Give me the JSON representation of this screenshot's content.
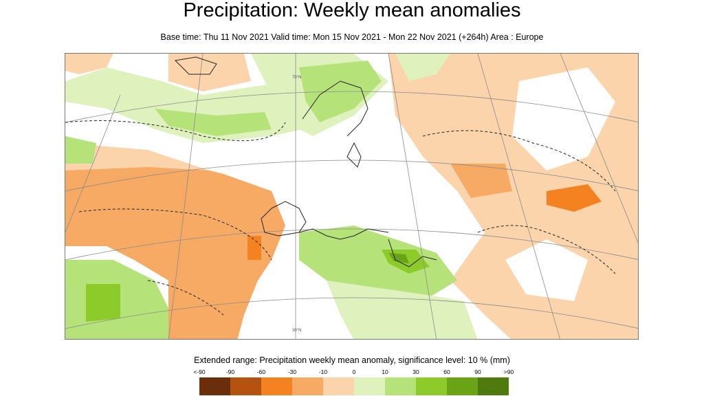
{
  "title": "Precipitation: Weekly mean anomalies",
  "subtitle": "Base time: Thu 11 Nov 2021 Valid time: Mon 15 Nov 2021 - Mon 22 Nov 2021 (+264h) Area : Europe",
  "map": {
    "lat_labels": [
      "70°N",
      "30°N"
    ]
  },
  "legend": {
    "title": "Extended range: Precipitation weekly mean anomaly, significance level: 10 % (mm)",
    "ticks": [
      "<-90",
      "-90",
      "-60",
      "-30",
      "-10",
      "0",
      "10",
      "30",
      "60",
      "90",
      ">90"
    ],
    "colors": [
      "#6b2e0a",
      "#b4520f",
      "#f58220",
      "#f7aa63",
      "#fbd4ac",
      "#dff1bd",
      "#b6e27a",
      "#8ccb2a",
      "#6aa315",
      "#4e7a0e"
    ]
  }
}
